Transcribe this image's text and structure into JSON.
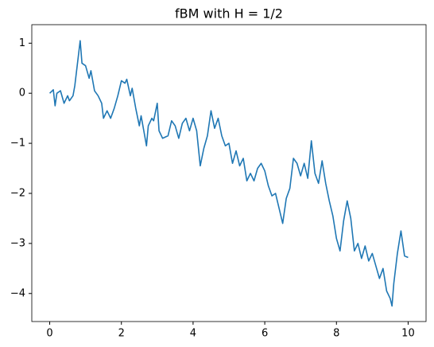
{
  "chart_data": {
    "type": "line",
    "title": "fBM with H = 1/2",
    "x": [
      0,
      0.1,
      0.15,
      0.2,
      0.3,
      0.4,
      0.5,
      0.55,
      0.65,
      0.7,
      0.8,
      0.85,
      0.9,
      1.0,
      1.1,
      1.15,
      1.25,
      1.35,
      1.45,
      1.5,
      1.6,
      1.7,
      1.8,
      1.9,
      1.95,
      2.0,
      2.1,
      2.15,
      2.25,
      2.3,
      2.4,
      2.5,
      2.55,
      2.65,
      2.7,
      2.75,
      2.85,
      2.9,
      3.0,
      3.05,
      3.15,
      3.3,
      3.4,
      3.5,
      3.6,
      3.7,
      3.8,
      3.9,
      4.0,
      4.1,
      4.15,
      4.2,
      4.3,
      4.4,
      4.5,
      4.6,
      4.7,
      4.8,
      4.9,
      5.0,
      5.1,
      5.2,
      5.3,
      5.4,
      5.5,
      5.6,
      5.7,
      5.8,
      5.9,
      6.0,
      6.1,
      6.2,
      6.3,
      6.4,
      6.5,
      6.6,
      6.7,
      6.8,
      6.9,
      7.0,
      7.1,
      7.2,
      7.3,
      7.4,
      7.5,
      7.6,
      7.7,
      7.8,
      7.9,
      8.0,
      8.1,
      8.2,
      8.3,
      8.4,
      8.5,
      8.6,
      8.7,
      8.8,
      8.9,
      9.0,
      9.1,
      9.2,
      9.3,
      9.4,
      9.5,
      9.55,
      9.6,
      9.7,
      9.8,
      9.9,
      10.0
    ],
    "series": [
      {
        "color": "#1f77b4",
        "values": [
          0,
          0.07,
          -0.25,
          0,
          0.05,
          -0.2,
          -0.05,
          -0.15,
          -0.05,
          0.15,
          0.75,
          1.05,
          0.6,
          0.55,
          0.3,
          0.45,
          0.05,
          -0.05,
          -0.2,
          -0.5,
          -0.35,
          -0.5,
          -0.3,
          -0.05,
          0.1,
          0.25,
          0.2,
          0.28,
          -0.05,
          0.1,
          -0.3,
          -0.65,
          -0.45,
          -0.85,
          -1.05,
          -0.65,
          -0.5,
          -0.55,
          -0.2,
          -0.75,
          -0.9,
          -0.85,
          -0.55,
          -0.65,
          -0.9,
          -0.6,
          -0.5,
          -0.75,
          -0.5,
          -0.75,
          -1.1,
          -1.45,
          -1.1,
          -0.85,
          -0.35,
          -0.7,
          -0.5,
          -0.85,
          -1.05,
          -1.0,
          -1.4,
          -1.15,
          -1.45,
          -1.3,
          -1.75,
          -1.6,
          -1.75,
          -1.5,
          -1.4,
          -1.55,
          -1.85,
          -2.05,
          -2.0,
          -2.3,
          -2.6,
          -2.1,
          -1.9,
          -1.3,
          -1.4,
          -1.65,
          -1.4,
          -1.7,
          -0.95,
          -1.6,
          -1.8,
          -1.35,
          -1.8,
          -2.15,
          -2.45,
          -2.9,
          -3.15,
          -2.55,
          -2.15,
          -2.5,
          -3.15,
          -3.0,
          -3.3,
          -3.05,
          -3.35,
          -3.2,
          -3.45,
          -3.7,
          -3.5,
          -3.95,
          -4.1,
          -4.25,
          -3.8,
          -3.2,
          -2.75,
          -3.25,
          -3.28
        ]
      }
    ],
    "xlim": [
      -0.5,
      10.5
    ],
    "xticks": [
      0,
      2,
      4,
      6,
      8,
      10
    ],
    "ylim": [
      -4.56,
      1.37
    ],
    "yticks": [
      1,
      0,
      -1,
      -2,
      -3,
      -4
    ]
  }
}
